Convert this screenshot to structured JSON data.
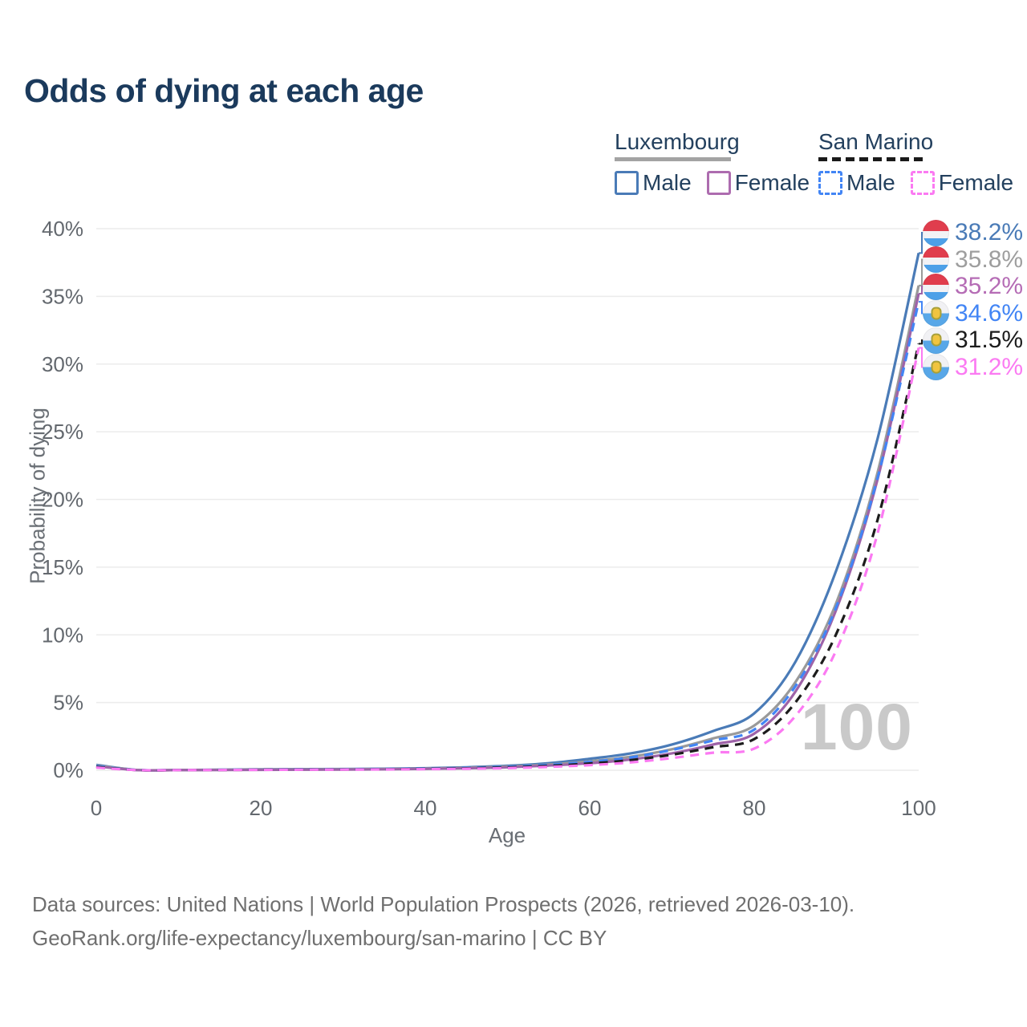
{
  "title": "Odds of dying at each age",
  "legend": {
    "groups": [
      {
        "label": "Luxembourg",
        "line_style": "solid",
        "underline_color": "#a3a3a3",
        "items": [
          {
            "label": "Male",
            "color": "#4a7bb7",
            "dashed": false
          },
          {
            "label": "Female",
            "color": "#ad6caf",
            "dashed": false
          }
        ]
      },
      {
        "label": "San Marino",
        "line_style": "dashed",
        "underline_color": "#1a1a1a",
        "items": [
          {
            "label": "Male",
            "color": "#4285f5",
            "dashed": true
          },
          {
            "label": "Female",
            "color": "#fb7af2",
            "dashed": true
          }
        ]
      }
    ]
  },
  "chart_data": {
    "type": "line",
    "title": "Odds of dying at each age",
    "xlabel": "Age",
    "ylabel": "Probability of dying",
    "xlim": [
      0,
      100
    ],
    "ylim": [
      0,
      40
    ],
    "x_ticks": [
      0,
      20,
      40,
      60,
      80,
      100
    ],
    "y_ticks": [
      "0%",
      "5%",
      "10%",
      "15%",
      "20%",
      "25%",
      "30%",
      "35%",
      "40%"
    ],
    "grid": "horizontal",
    "legend_position": "top-right",
    "watermark": "100",
    "x": [
      0,
      5,
      10,
      15,
      20,
      25,
      30,
      35,
      40,
      45,
      50,
      55,
      60,
      65,
      70,
      75,
      80,
      85,
      90,
      95,
      100
    ],
    "series": [
      {
        "id": "luxembourg-male",
        "name": "Luxembourg Male",
        "country": "Luxembourg",
        "sex": "Male",
        "color": "#4a7bb7",
        "label_color": "#4a7bb7",
        "dashed": false,
        "flag": "luxembourg",
        "end_label": "38.2%",
        "end_value": 38.2,
        "values": [
          0.4,
          0.02,
          0.02,
          0.04,
          0.07,
          0.08,
          0.09,
          0.11,
          0.15,
          0.22,
          0.33,
          0.52,
          0.85,
          1.25,
          1.9,
          2.9,
          4.2,
          8.0,
          14.8,
          24.5,
          38.2
        ]
      },
      {
        "id": "luxembourg-both",
        "name": "Luxembourg",
        "country": "Luxembourg",
        "sex": "Both",
        "color": "#9a9a9a",
        "label_color": "#9e9e9e",
        "dashed": false,
        "flag": "luxembourg",
        "end_label": "35.8%",
        "end_value": 35.8,
        "values": [
          0.35,
          0.02,
          0.02,
          0.03,
          0.05,
          0.06,
          0.07,
          0.09,
          0.12,
          0.18,
          0.27,
          0.42,
          0.66,
          1.0,
          1.55,
          2.35,
          3.3,
          6.5,
          12.4,
          22.0,
          35.8
        ]
      },
      {
        "id": "luxembourg-female",
        "name": "Luxembourg Female",
        "country": "Luxembourg",
        "sex": "Female",
        "color": "#9e63a8",
        "label_color": "#b56cb5",
        "dashed": false,
        "flag": "luxembourg",
        "end_label": "35.2%",
        "end_value": 35.2,
        "values": [
          0.3,
          0.01,
          0.01,
          0.02,
          0.03,
          0.04,
          0.05,
          0.07,
          0.1,
          0.15,
          0.22,
          0.35,
          0.52,
          0.8,
          1.25,
          1.9,
          2.7,
          5.8,
          11.9,
          21.5,
          35.2
        ]
      },
      {
        "id": "san-marino-male",
        "name": "San Marino Male",
        "country": "San Marino",
        "sex": "Male",
        "color": "#4285f5",
        "label_color": "#4285f5",
        "dashed": true,
        "flag": "san-marino",
        "end_label": "34.6%",
        "end_value": 34.6,
        "values": [
          0.3,
          0.02,
          0.02,
          0.03,
          0.05,
          0.06,
          0.07,
          0.09,
          0.12,
          0.17,
          0.26,
          0.4,
          0.62,
          0.95,
          1.5,
          2.2,
          3.0,
          6.2,
          12.1,
          21.6,
          34.6
        ]
      },
      {
        "id": "san-marino-both",
        "name": "San Marino",
        "country": "San Marino",
        "sex": "Both",
        "color": "#1c1c1c",
        "label_color": "#1c1c1c",
        "dashed": true,
        "flag": "san-marino",
        "end_label": "31.5%",
        "end_value": 31.5,
        "values": [
          0.25,
          0.01,
          0.01,
          0.02,
          0.04,
          0.05,
          0.06,
          0.07,
          0.1,
          0.14,
          0.21,
          0.32,
          0.5,
          0.75,
          1.15,
          1.7,
          2.3,
          5.0,
          10.1,
          18.5,
          31.5
        ]
      },
      {
        "id": "san-marino-female",
        "name": "San Marino Female",
        "country": "San Marino",
        "sex": "Female",
        "color": "#fb7af2",
        "label_color": "#fb7af2",
        "dashed": true,
        "flag": "san-marino",
        "end_label": "31.2%",
        "end_value": 31.2,
        "values": [
          0.2,
          0.01,
          0.01,
          0.02,
          0.03,
          0.04,
          0.05,
          0.06,
          0.08,
          0.11,
          0.16,
          0.25,
          0.38,
          0.58,
          0.9,
          1.3,
          1.6,
          4.0,
          8.9,
          17.5,
          31.2
        ]
      }
    ]
  },
  "footer": {
    "line1": "Data sources: United Nations | World Population Prospects (2026, retrieved 2026-03-10).",
    "line2": "GeoRank.org/life-expectancy/luxembourg/san-marino | CC BY"
  }
}
